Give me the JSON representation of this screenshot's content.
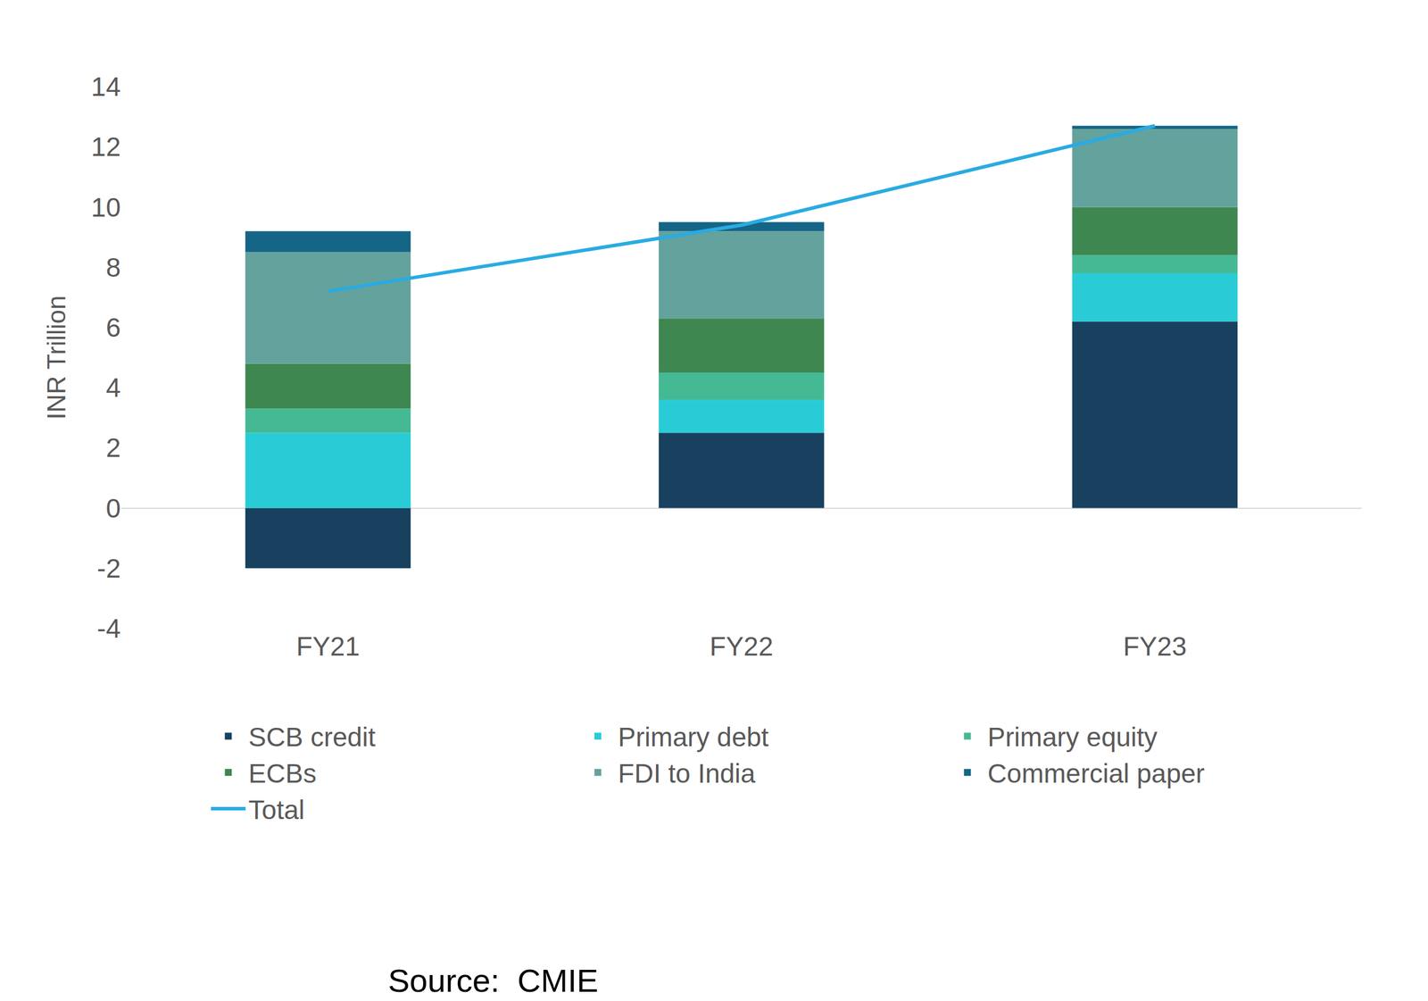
{
  "chart_data": {
    "type": "bar",
    "stacked": true,
    "grid": false,
    "ylabel": "INR Trillion",
    "categories": [
      "FY21",
      "FY22",
      "FY23"
    ],
    "series": [
      {
        "name": "SCB credit",
        "color": "#17415f",
        "values": [
          -2.0,
          2.5,
          6.2
        ]
      },
      {
        "name": "Primary debt",
        "color": "#29ccd6",
        "values": [
          2.5,
          1.1,
          1.6
        ]
      },
      {
        "name": "Primary equity",
        "color": "#45b994",
        "values": [
          0.8,
          0.9,
          0.6
        ]
      },
      {
        "name": "ECBs",
        "color": "#3e8751",
        "values": [
          1.5,
          1.8,
          1.6
        ]
      },
      {
        "name": "FDI to India",
        "color": "#64a29d",
        "values": [
          3.7,
          2.9,
          2.6
        ]
      },
      {
        "name": "Commercial paper",
        "color": "#156686",
        "values": [
          0.7,
          0.3,
          0.1
        ]
      },
      {
        "name": "Total",
        "type": "line",
        "color": "#29abe2",
        "values": [
          7.2,
          9.4,
          12.7
        ]
      }
    ],
    "ylim": [
      -4,
      14
    ],
    "yticks": [
      -4,
      -2,
      0,
      2,
      4,
      6,
      8,
      10,
      12,
      14
    ],
    "legend": "bottom",
    "annotations": [
      "Source:  CMIE"
    ]
  }
}
